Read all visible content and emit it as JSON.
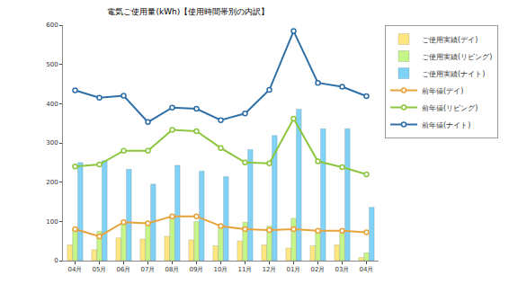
{
  "chart_data": {
    "type": "bar",
    "title": "電気ご使用量(kWh)【使用時間帯別の内訳】",
    "categories": [
      "04月",
      "05月",
      "06月",
      "07月",
      "08月",
      "09月",
      "10月",
      "11月",
      "12月",
      "01月",
      "02月",
      "03月",
      "04月"
    ],
    "series": [
      {
        "name": "ご使用実績(デイ)",
        "type": "bar",
        "color": "#ffe680",
        "values": [
          40,
          28,
          58,
          55,
          62,
          53,
          38,
          50,
          40,
          32,
          38,
          40,
          8
        ]
      },
      {
        "name": "ご使用実績(リビング)",
        "type": "bar",
        "color": "#c6f58a",
        "values": [
          80,
          75,
          95,
          90,
          115,
          100,
          90,
          98,
          88,
          108,
          75,
          70,
          20
        ]
      },
      {
        "name": "ご使用実績(ナイト)",
        "type": "bar",
        "color": "#80d2f7",
        "values": [
          250,
          255,
          233,
          195,
          243,
          228,
          214,
          283,
          319,
          386,
          336,
          336,
          136
        ]
      },
      {
        "name": "前年値(デイ)",
        "type": "line",
        "color": "#e8a23a",
        "marker": "circle",
        "values": [
          80,
          62,
          98,
          95,
          113,
          113,
          88,
          80,
          78,
          80,
          76,
          76,
          72
        ]
      },
      {
        "name": "前年値(リビング)",
        "type": "line",
        "color": "#8cc63f",
        "marker": "circle",
        "values": [
          240,
          245,
          280,
          280,
          333,
          330,
          287,
          250,
          248,
          362,
          253,
          238,
          220
        ]
      },
      {
        "name": "前年値(ナイト)",
        "type": "line",
        "color": "#2f6fa8",
        "marker": "circle",
        "values": [
          434,
          415,
          420,
          353,
          390,
          387,
          358,
          375,
          435,
          585,
          453,
          443,
          419
        ]
      }
    ],
    "ylim": [
      0,
      600
    ],
    "yticks": [
      0,
      100,
      200,
      300,
      400,
      500,
      600
    ],
    "grid": false,
    "legend": "right"
  }
}
